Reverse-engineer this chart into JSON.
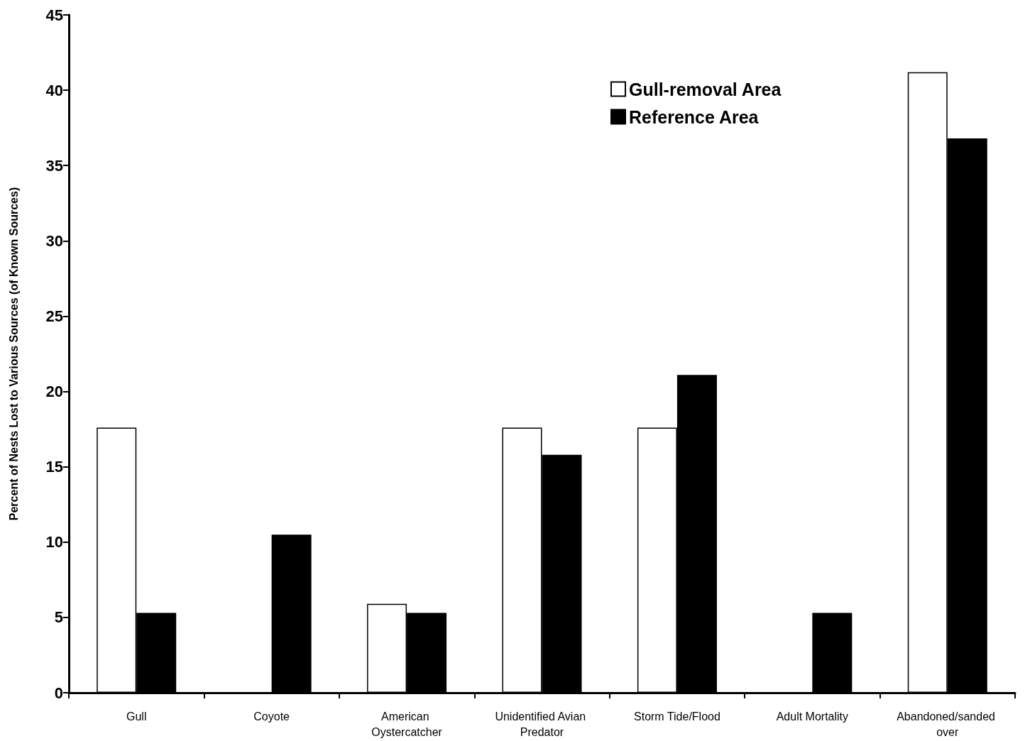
{
  "chart_data": {
    "type": "bar",
    "ylabel": "Percent of Nests Lost to Various Sources (of Known Sources)",
    "categories": [
      "Gull",
      "Coyote",
      "American Oystercatcher",
      "Unidentified Avian Predator",
      "Storm Tide/Flood",
      "Adult Mortality",
      "Abandoned/sanded over"
    ],
    "series": [
      {
        "name": "Gull-removal Area",
        "color": "#ffffff",
        "values": [
          17.6,
          0,
          5.9,
          17.6,
          17.6,
          0,
          41.2
        ]
      },
      {
        "name": "Reference Area",
        "color": "#000000",
        "values": [
          5.3,
          10.5,
          5.3,
          15.8,
          21.1,
          5.3,
          36.8
        ]
      }
    ],
    "ylim": [
      0,
      45
    ],
    "yticks": [
      0,
      5,
      10,
      15,
      20,
      25,
      30,
      35,
      40,
      45
    ],
    "grid": false,
    "legend": "top right"
  }
}
